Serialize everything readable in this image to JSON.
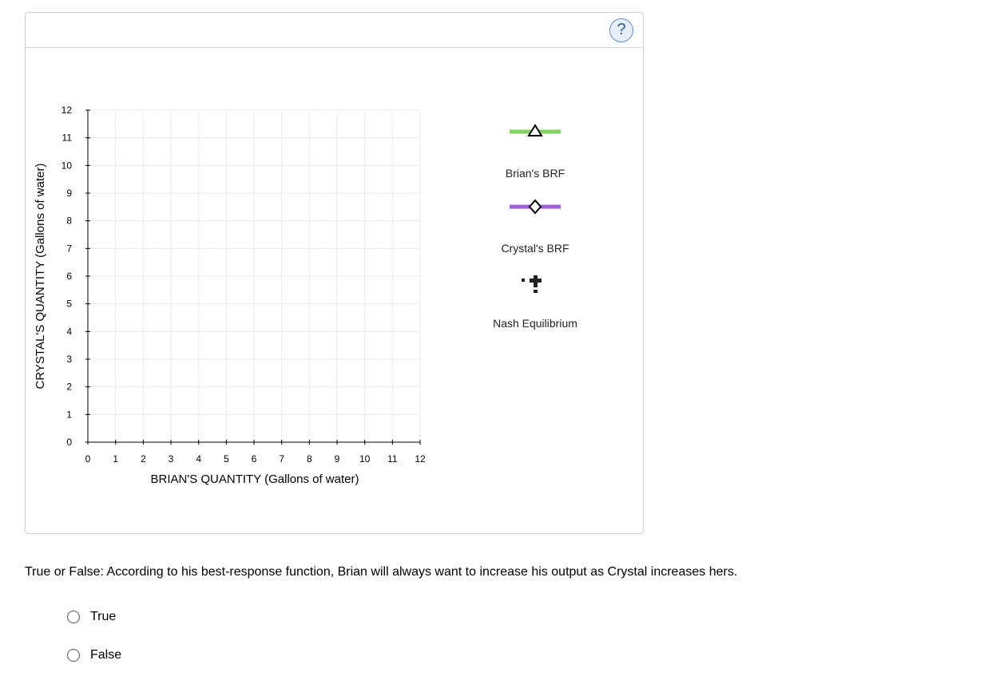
{
  "help": {
    "label": "?"
  },
  "chart_data": {
    "type": "line",
    "xlabel": "BRIAN'S QUANTITY (Gallons of water)",
    "ylabel": "CRYSTAL'S QUANTITY (Gallons of water)",
    "xlim": [
      0,
      12
    ],
    "ylim": [
      0,
      12
    ],
    "xticks": [
      "0",
      "1",
      "2",
      "3",
      "4",
      "5",
      "6",
      "7",
      "8",
      "9",
      "10",
      "11",
      "12"
    ],
    "yticks": [
      "0",
      "1",
      "2",
      "3",
      "4",
      "5",
      "6",
      "7",
      "8",
      "9",
      "10",
      "11",
      "12"
    ],
    "grid": true,
    "series": []
  },
  "legend": {
    "items": [
      {
        "label": "Brian's BRF",
        "color": "#7fd35f",
        "marker": "triangle"
      },
      {
        "label": "Crystal's BRF",
        "color": "#a15fd6",
        "marker": "diamond"
      },
      {
        "label": "Nash Equilibrium",
        "color": "#222222",
        "marker": "cross"
      }
    ]
  },
  "question": {
    "text": "True or False: According to his best-response function, Brian will always want to increase his output as Crystal increases hers.",
    "options": [
      "True",
      "False"
    ]
  }
}
